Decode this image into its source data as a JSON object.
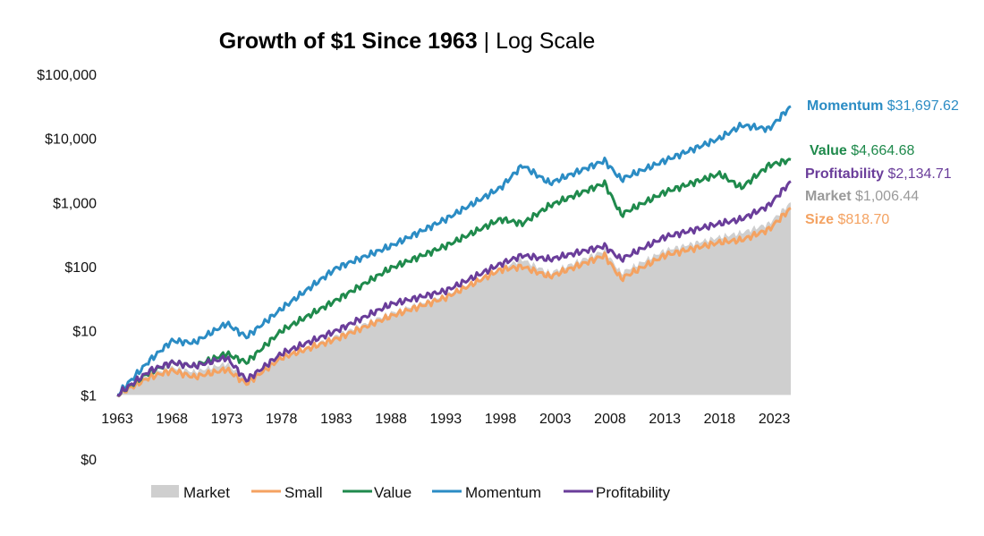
{
  "chart_data": {
    "type": "line",
    "title_bold": "Growth of $1 Since 1963",
    "title_rest": " | Log Scale",
    "xlabel": "",
    "ylabel": "",
    "yscale": "log",
    "ylim": [
      0.1,
      100000
    ],
    "xlim": [
      1963,
      2024.5
    ],
    "grid": false,
    "legend_position": "bottom",
    "y_ticks": [
      {
        "value": 100000,
        "label": "$100,000"
      },
      {
        "value": 10000,
        "label": "$10,000"
      },
      {
        "value": 1000,
        "label": "$1,000"
      },
      {
        "value": 100,
        "label": "$100"
      },
      {
        "value": 10,
        "label": "$10"
      },
      {
        "value": 1,
        "label": "$1"
      },
      {
        "value": 0.1,
        "label": "$0"
      }
    ],
    "x_ticks": [
      "1963",
      "1968",
      "1973",
      "1978",
      "1983",
      "1988",
      "1993",
      "1998",
      "2003",
      "2008",
      "2013",
      "2018",
      "2023"
    ],
    "x": [
      1963,
      1966,
      1968,
      1970,
      1973,
      1974.8,
      1978,
      1983,
      1988,
      1993,
      1998,
      2000,
      2002.5,
      2007.5,
      2009,
      2013,
      2018,
      2020,
      2022.5,
      2024.5
    ],
    "series": [
      {
        "name": "Market",
        "style": "area",
        "color": "#cfcfcf",
        "values": [
          1,
          2.1,
          2.7,
          2.3,
          3.1,
          1.7,
          3.8,
          8.4,
          19,
          36,
          95,
          130,
          80,
          180,
          80,
          180,
          290,
          340,
          470,
          1006.44
        ]
      },
      {
        "name": "Small",
        "style": "line",
        "color": "#f4a261",
        "values": [
          1,
          1.9,
          2.4,
          1.9,
          2.5,
          1.5,
          3.8,
          7.5,
          17,
          33,
          90,
          100,
          70,
          150,
          65,
          150,
          240,
          260,
          380,
          818.7
        ]
      },
      {
        "name": "Value",
        "style": "line",
        "color": "#1f8a4c",
        "values": [
          1,
          2.3,
          3.2,
          2.8,
          4.4,
          3.2,
          10,
          30,
          95,
          210,
          550,
          470,
          900,
          2000,
          650,
          1450,
          2800,
          1700,
          3800,
          4664.68
        ]
      },
      {
        "name": "Momentum",
        "style": "line",
        "color": "#2b8cc4",
        "values": [
          1,
          3.5,
          7,
          6.5,
          13,
          8,
          22,
          95,
          210,
          550,
          1700,
          3800,
          2000,
          4500,
          2300,
          4500,
          10000,
          16000,
          14000,
          31697.62
        ]
      },
      {
        "name": "Profitability",
        "style": "line",
        "color": "#6a3d9a",
        "values": [
          1,
          2.4,
          3.2,
          2.8,
          3.8,
          1.7,
          4.4,
          10,
          26,
          42,
          110,
          150,
          130,
          210,
          130,
          290,
          470,
          550,
          900,
          2134.71
        ]
      }
    ],
    "end_labels": [
      {
        "series": "Momentum",
        "name": "Momentum",
        "value": "$31,697.62",
        "color": "#2b8cc4"
      },
      {
        "series": "Value",
        "name": "Value",
        "value": "$4,664.68",
        "color": "#1f8a4c"
      },
      {
        "series": "Profitability",
        "name": "Profitability",
        "value": "$2,134.71",
        "color": "#6a3d9a"
      },
      {
        "series": "Market",
        "name": "Market",
        "value": "$1,006.44",
        "color": "#9a9a9a"
      },
      {
        "series": "Small",
        "name": "Size",
        "value": "$818.70",
        "color": "#f4a261"
      }
    ]
  }
}
